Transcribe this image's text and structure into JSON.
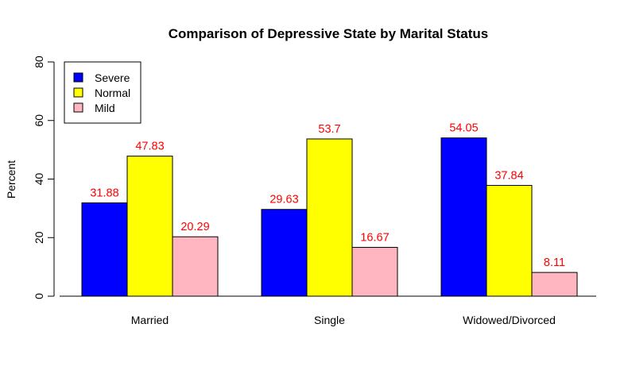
{
  "chart_data": {
    "type": "bar",
    "title": "Comparison of Depressive State by Marital Status",
    "xlabel": "",
    "ylabel": "Percent",
    "ylim": [
      0,
      80
    ],
    "yticks": [
      0,
      20,
      40,
      60,
      80
    ],
    "categories": [
      "Married",
      "Single",
      "Widowed/Divorced"
    ],
    "series": [
      {
        "name": "Severe",
        "color": "#0000FF",
        "values": [
          31.88,
          29.63,
          54.05
        ],
        "labels": [
          "31.88",
          "29.63",
          "54.05"
        ]
      },
      {
        "name": "Normal",
        "color": "#FFFF00",
        "values": [
          47.83,
          53.7,
          37.84
        ],
        "labels": [
          "47.83",
          "53.7",
          "37.84"
        ]
      },
      {
        "name": "Mild",
        "color": "#FFB6C1",
        "values": [
          20.29,
          16.67,
          8.11
        ],
        "labels": [
          "20.29",
          "16.67",
          "8.11"
        ]
      }
    ],
    "value_label_color": "#FF0000",
    "legend_position": "top-left",
    "grid": false
  }
}
